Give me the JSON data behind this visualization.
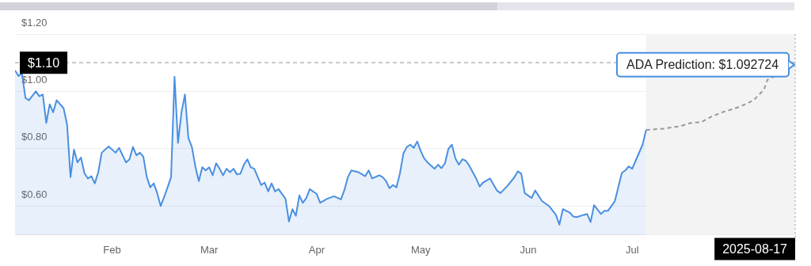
{
  "chart_data": {
    "type": "area",
    "xlim": [
      "2025-01-04",
      "2025-08-17"
    ],
    "ylim": [
      0.5,
      1.2
    ],
    "xticks": [
      {
        "value": "2025-02-01",
        "label": "Feb"
      },
      {
        "value": "2025-03-01",
        "label": "Mar"
      },
      {
        "value": "2025-04-01",
        "label": "Apr"
      },
      {
        "value": "2025-05-01",
        "label": "May"
      },
      {
        "value": "2025-06-01",
        "label": "Jun"
      },
      {
        "value": "2025-07-01",
        "label": "Jul"
      }
    ],
    "yticks": [
      {
        "value": 0.6,
        "label": "$0.60"
      },
      {
        "value": 0.8,
        "label": "$0.80"
      },
      {
        "value": 1.0,
        "label": "$1.00"
      },
      {
        "value": 1.2,
        "label": "$1.20"
      }
    ],
    "grid": "y",
    "legend": false,
    "marker": "none",
    "series": [
      {
        "color": "#4a8fe0",
        "x": [
          "2025-01-04",
          "2025-01-05",
          "2025-01-06",
          "2025-01-07",
          "2025-01-08",
          "2025-01-10",
          "2025-01-11",
          "2025-01-12",
          "2025-01-13",
          "2025-01-14",
          "2025-01-15",
          "2025-01-16",
          "2025-01-18",
          "2025-01-19",
          "2025-01-20",
          "2025-01-21",
          "2025-01-22",
          "2025-01-23",
          "2025-01-24",
          "2025-01-25",
          "2025-01-26",
          "2025-01-27",
          "2025-01-28",
          "2025-01-29",
          "2025-01-31",
          "2025-02-02",
          "2025-02-03",
          "2025-02-05",
          "2025-02-06",
          "2025-02-07",
          "2025-02-08",
          "2025-02-09",
          "2025-02-10",
          "2025-02-11",
          "2025-02-12",
          "2025-02-13",
          "2025-02-14",
          "2025-02-15",
          "2025-02-16",
          "2025-02-17",
          "2025-02-18",
          "2025-02-19",
          "2025-02-20",
          "2025-02-21",
          "2025-02-22",
          "2025-02-23",
          "2025-02-24",
          "2025-02-25",
          "2025-02-26",
          "2025-02-27",
          "2025-02-28",
          "2025-03-01",
          "2025-03-02",
          "2025-03-03",
          "2025-03-04",
          "2025-03-05",
          "2025-03-06",
          "2025-03-07",
          "2025-03-08",
          "2025-03-09",
          "2025-03-10",
          "2025-03-11",
          "2025-03-12",
          "2025-03-13",
          "2025-03-14",
          "2025-03-15",
          "2025-03-16",
          "2025-03-17",
          "2025-03-18",
          "2025-03-19",
          "2025-03-20",
          "2025-03-21",
          "2025-03-23",
          "2025-03-24",
          "2025-03-25",
          "2025-03-26",
          "2025-03-27",
          "2025-03-28",
          "2025-03-29",
          "2025-03-30",
          "2025-04-01",
          "2025-04-02",
          "2025-04-04",
          "2025-04-06",
          "2025-04-08",
          "2025-04-09",
          "2025-04-10",
          "2025-04-11",
          "2025-04-13",
          "2025-04-15",
          "2025-04-16",
          "2025-04-17",
          "2025-04-19",
          "2025-04-20",
          "2025-04-21",
          "2025-04-22",
          "2025-04-23",
          "2025-04-24",
          "2025-04-25",
          "2025-04-26",
          "2025-04-27",
          "2025-04-28",
          "2025-04-29",
          "2025-04-30",
          "2025-05-01",
          "2025-05-02",
          "2025-05-03",
          "2025-05-05",
          "2025-05-06",
          "2025-05-07",
          "2025-05-08",
          "2025-05-09",
          "2025-05-10",
          "2025-05-11",
          "2025-05-12",
          "2025-05-13",
          "2025-05-14",
          "2025-05-15",
          "2025-05-17",
          "2025-05-18",
          "2025-05-19",
          "2025-05-21",
          "2025-05-23",
          "2025-05-24",
          "2025-05-26",
          "2025-05-28",
          "2025-05-29",
          "2025-05-30",
          "2025-05-31",
          "2025-06-02",
          "2025-06-03",
          "2025-06-05",
          "2025-06-07",
          "2025-06-09",
          "2025-06-10",
          "2025-06-11",
          "2025-06-13",
          "2025-06-14",
          "2025-06-15",
          "2025-06-17",
          "2025-06-18",
          "2025-06-19",
          "2025-06-20",
          "2025-06-22",
          "2025-06-23",
          "2025-06-24",
          "2025-06-26",
          "2025-06-28",
          "2025-06-29",
          "2025-06-30",
          "2025-07-01",
          "2025-07-02",
          "2025-07-04",
          "2025-07-05"
        ],
        "values": [
          1.073,
          1.054,
          1.062,
          0.977,
          0.969,
          1.0,
          0.983,
          0.989,
          0.89,
          0.955,
          0.927,
          0.969,
          0.941,
          0.885,
          0.701,
          0.797,
          0.752,
          0.769,
          0.715,
          0.696,
          0.704,
          0.679,
          0.718,
          0.786,
          0.808,
          0.786,
          0.803,
          0.752,
          0.763,
          0.806,
          0.777,
          0.786,
          0.772,
          0.701,
          0.665,
          0.679,
          0.645,
          0.6,
          0.631,
          0.665,
          0.701,
          1.051,
          0.82,
          0.927,
          0.989,
          0.837,
          0.806,
          0.738,
          0.687,
          0.735,
          0.724,
          0.735,
          0.707,
          0.749,
          0.73,
          0.707,
          0.73,
          0.718,
          0.73,
          0.71,
          0.713,
          0.744,
          0.763,
          0.735,
          0.73,
          0.701,
          0.673,
          0.682,
          0.651,
          0.679,
          0.651,
          0.659,
          0.625,
          0.546,
          0.589,
          0.566,
          0.637,
          0.611,
          0.628,
          0.659,
          0.642,
          0.611,
          0.625,
          0.634,
          0.623,
          0.656,
          0.701,
          0.724,
          0.718,
          0.704,
          0.724,
          0.696,
          0.707,
          0.701,
          0.687,
          0.662,
          0.673,
          0.665,
          0.713,
          0.783,
          0.806,
          0.814,
          0.803,
          0.825,
          0.792,
          0.766,
          0.752,
          0.73,
          0.744,
          0.732,
          0.749,
          0.8,
          0.814,
          0.766,
          0.744,
          0.763,
          0.758,
          0.741,
          0.696,
          0.668,
          0.682,
          0.696,
          0.654,
          0.645,
          0.67,
          0.7,
          0.721,
          0.713,
          0.645,
          0.628,
          0.654,
          0.617,
          0.6,
          0.569,
          0.535,
          0.589,
          0.577,
          0.563,
          0.561,
          0.569,
          0.572,
          0.544,
          0.603,
          0.572,
          0.583,
          0.583,
          0.617,
          0.715,
          0.724,
          0.738,
          0.73,
          0.758,
          0.814,
          0.865
        ]
      },
      {
        "type": "line",
        "color": "#999999",
        "line_style": "dashed",
        "x": [
          "2025-07-05",
          "2025-07-10",
          "2025-07-15",
          "2025-07-18",
          "2025-07-21",
          "2025-07-24",
          "2025-07-27",
          "2025-08-01",
          "2025-08-05",
          "2025-08-08",
          "2025-08-09",
          "2025-08-17"
        ],
        "values": [
          0.865,
          0.87,
          0.879,
          0.89,
          0.893,
          0.913,
          0.927,
          0.946,
          0.969,
          1.006,
          1.04,
          1.092724
        ]
      }
    ],
    "ref_lines": [
      {
        "axis": "y",
        "value": 1.1,
        "label": "$1.10",
        "color": "#aaaaaa",
        "line_style": "dashed"
      },
      {
        "axis": "x",
        "value": "2025-08-17",
        "label": "2025-08-17",
        "color": "#aaaaaa",
        "line_style": "dotted"
      }
    ],
    "bands": [
      {
        "axis": "x",
        "from": "2025-07-05",
        "to": "2025-08-17",
        "color": "#f3f3f3"
      }
    ],
    "annotations": [
      {
        "text": "ADA Prediction: $1.092724",
        "x": "2025-08-17",
        "y": 1.092724
      }
    ]
  }
}
